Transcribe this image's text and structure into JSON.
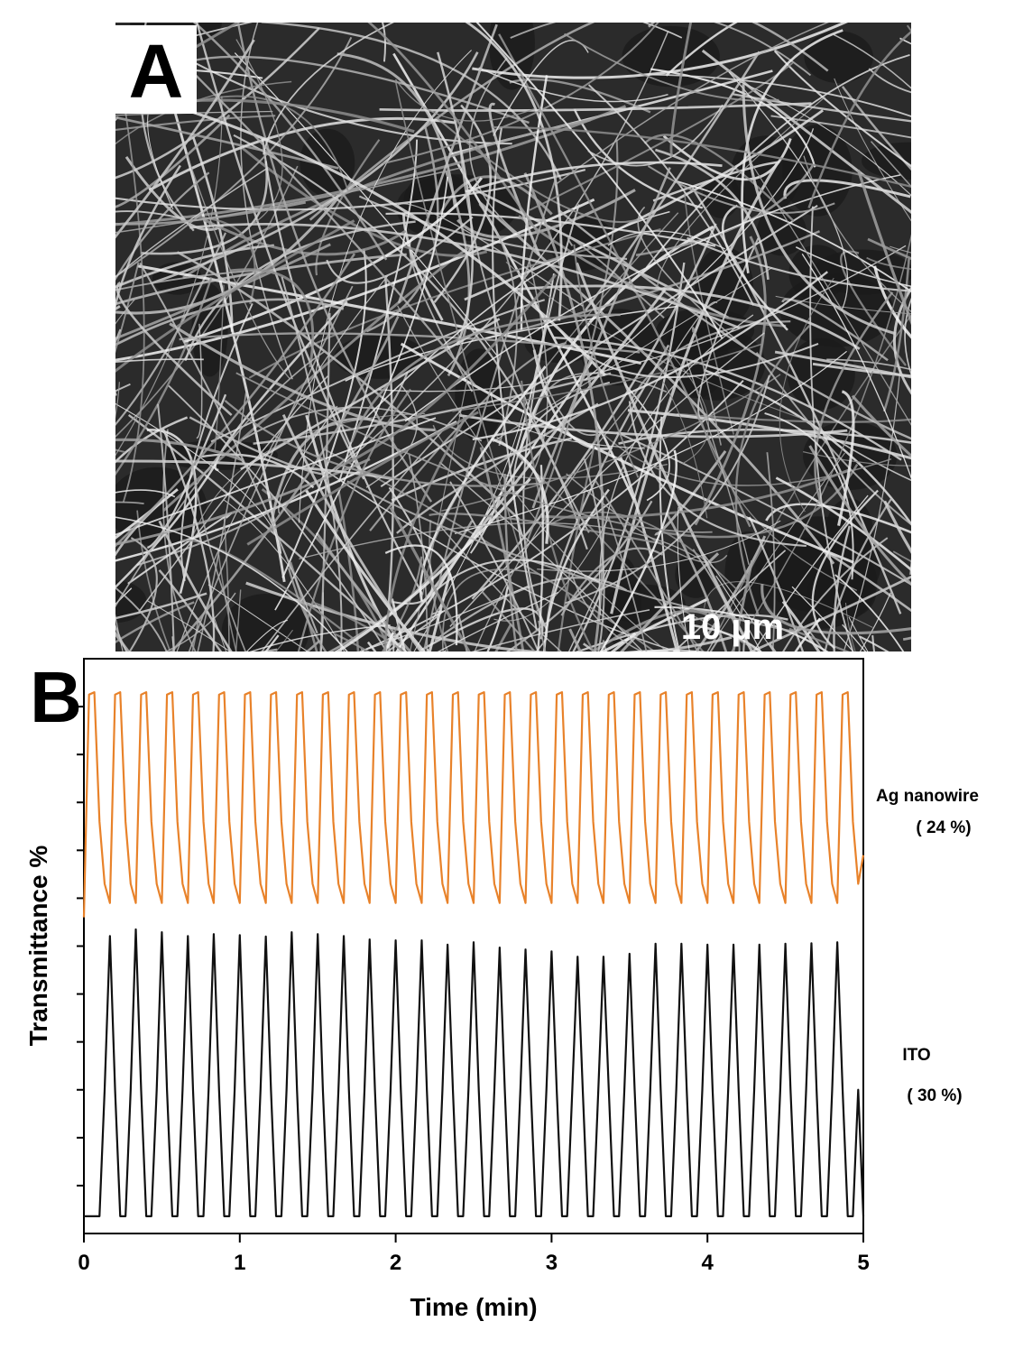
{
  "panel_a": {
    "label": "A",
    "scale_bar": "10 µm"
  },
  "chart_data": {
    "type": "line",
    "panel_label": "B",
    "x_label": "Time (min)",
    "y_label": "Transmittance %",
    "xlim": [
      0,
      5
    ],
    "xticks": [
      0,
      1,
      2,
      3,
      4,
      5
    ],
    "ylim": [
      0,
      12
    ],
    "yticks": [
      1,
      2,
      3,
      4,
      5,
      6,
      7,
      8,
      9,
      10,
      11
    ],
    "x": [
      0,
      0.033,
      0.067,
      0.1,
      0.133,
      0.167,
      0.2,
      0.233,
      0.267,
      0.3,
      0.333,
      0.367,
      0.4,
      0.433,
      0.467,
      0.5,
      0.533,
      0.567,
      0.6,
      0.633,
      0.667,
      0.7,
      0.733,
      0.767,
      0.8,
      0.833,
      0.867,
      0.9,
      0.933,
      0.967,
      1,
      1.033,
      1.067,
      1.1,
      1.133,
      1.167,
      1.2,
      1.233,
      1.267,
      1.3,
      1.333,
      1.367,
      1.4,
      1.433,
      1.467,
      1.5,
      1.533,
      1.567,
      1.6,
      1.633,
      1.667,
      1.7,
      1.733,
      1.767,
      1.8,
      1.833,
      1.867,
      1.9,
      1.933,
      1.967,
      2,
      2.033,
      2.067,
      2.1,
      2.133,
      2.167,
      2.2,
      2.233,
      2.267,
      2.3,
      2.333,
      2.367,
      2.4,
      2.433,
      2.467,
      2.5,
      2.533,
      2.567,
      2.6,
      2.633,
      2.667,
      2.7,
      2.733,
      2.767,
      2.8,
      2.833,
      2.867,
      2.9,
      2.933,
      2.967,
      3,
      3.033,
      3.067,
      3.1,
      3.133,
      3.167,
      3.2,
      3.233,
      3.267,
      3.3,
      3.333,
      3.367,
      3.4,
      3.433,
      3.467,
      3.5,
      3.533,
      3.567,
      3.6,
      3.633,
      3.667,
      3.7,
      3.733,
      3.767,
      3.8,
      3.833,
      3.867,
      3.9,
      3.933,
      3.967,
      4,
      4.033,
      4.067,
      4.1,
      4.133,
      4.167,
      4.2,
      4.233,
      4.267,
      4.3,
      4.333,
      4.367,
      4.4,
      4.433,
      4.467,
      4.5,
      4.533,
      4.567,
      4.6,
      4.633,
      4.667,
      4.7,
      4.733,
      4.767,
      4.8,
      4.833,
      4.867,
      4.9,
      4.933,
      4.967,
      5
    ],
    "series": [
      {
        "name": "Ag nanowire",
        "annotation": "( 24 %)",
        "color": "#e8822a",
        "values": [
          6.6,
          11.25,
          11.3,
          8.6,
          7.3,
          6.9,
          11.25,
          11.3,
          8.6,
          7.3,
          6.9,
          11.25,
          11.3,
          8.6,
          7.3,
          6.9,
          11.25,
          11.3,
          8.6,
          7.3,
          6.9,
          11.25,
          11.3,
          8.6,
          7.3,
          6.9,
          11.25,
          11.3,
          8.6,
          7.3,
          6.9,
          11.25,
          11.3,
          8.6,
          7.3,
          6.9,
          11.25,
          11.3,
          8.6,
          7.3,
          6.9,
          11.25,
          11.3,
          8.6,
          7.3,
          6.9,
          11.25,
          11.3,
          8.6,
          7.3,
          6.9,
          11.25,
          11.3,
          8.6,
          7.3,
          6.9,
          11.25,
          11.3,
          8.6,
          7.3,
          6.9,
          11.25,
          11.3,
          8.6,
          7.3,
          6.9,
          11.25,
          11.3,
          8.6,
          7.3,
          6.9,
          11.25,
          11.3,
          8.6,
          7.3,
          6.9,
          11.25,
          11.3,
          8.6,
          7.3,
          6.9,
          11.25,
          11.3,
          8.6,
          7.3,
          6.9,
          11.25,
          11.3,
          8.6,
          7.3,
          6.9,
          11.25,
          11.3,
          8.6,
          7.3,
          6.9,
          11.25,
          11.3,
          8.6,
          7.3,
          6.9,
          11.25,
          11.3,
          8.6,
          7.3,
          6.9,
          11.25,
          11.3,
          8.6,
          7.3,
          6.9,
          11.25,
          11.3,
          8.6,
          7.3,
          6.9,
          11.25,
          11.3,
          8.6,
          7.3,
          6.9,
          11.25,
          11.3,
          8.6,
          7.3,
          6.9,
          11.25,
          11.3,
          8.6,
          7.3,
          6.9,
          11.25,
          11.3,
          8.6,
          7.3,
          6.9,
          11.25,
          11.3,
          8.6,
          7.3,
          6.9,
          11.25,
          11.3,
          8.6,
          7.3,
          6.9,
          11.25,
          11.3,
          8.6,
          7.3,
          7.9
        ]
      },
      {
        "name": "ITO",
        "annotation": "( 30 %)",
        "color": "#111111",
        "values": [
          0.36,
          0.36,
          0.36,
          0.36,
          3.0,
          6.21,
          3.0,
          0.36,
          0.36,
          3.0,
          6.35,
          3.0,
          0.36,
          0.36,
          3.0,
          6.29,
          3.0,
          0.36,
          0.36,
          3.0,
          6.21,
          3.0,
          0.36,
          0.36,
          3.0,
          6.25,
          3.0,
          0.36,
          0.36,
          3.0,
          6.23,
          3.0,
          0.36,
          0.36,
          3.0,
          6.2,
          3.0,
          0.36,
          0.36,
          3.0,
          6.29,
          3.0,
          0.36,
          0.36,
          3.0,
          6.25,
          3.0,
          0.36,
          0.36,
          3.0,
          6.21,
          3.0,
          0.36,
          0.36,
          3.0,
          6.14,
          3.0,
          0.36,
          0.36,
          3.0,
          6.12,
          3.0,
          0.36,
          0.36,
          3.0,
          6.12,
          3.0,
          0.36,
          0.36,
          3.0,
          6.03,
          3.0,
          0.36,
          0.36,
          3.0,
          6.08,
          3.0,
          0.36,
          0.36,
          3.0,
          5.97,
          3.0,
          0.36,
          0.36,
          3.0,
          5.93,
          3.0,
          0.36,
          0.36,
          3.0,
          5.89,
          3.0,
          0.36,
          0.36,
          3.0,
          5.78,
          3.0,
          0.36,
          0.36,
          3.0,
          5.78,
          3.0,
          0.36,
          0.36,
          3.0,
          5.84,
          3.0,
          0.36,
          0.36,
          3.0,
          6.05,
          3.0,
          0.36,
          0.36,
          3.0,
          6.05,
          3.0,
          0.36,
          0.36,
          3.0,
          6.03,
          3.0,
          0.36,
          0.36,
          3.0,
          6.03,
          3.0,
          0.36,
          0.36,
          3.0,
          6.03,
          3.0,
          0.36,
          0.36,
          3.0,
          6.05,
          3.0,
          0.36,
          0.36,
          3.0,
          6.06,
          3.0,
          0.36,
          0.36,
          3.0,
          6.08,
          3.0,
          0.36,
          0.36,
          3.0,
          0.36
        ]
      }
    ]
  }
}
